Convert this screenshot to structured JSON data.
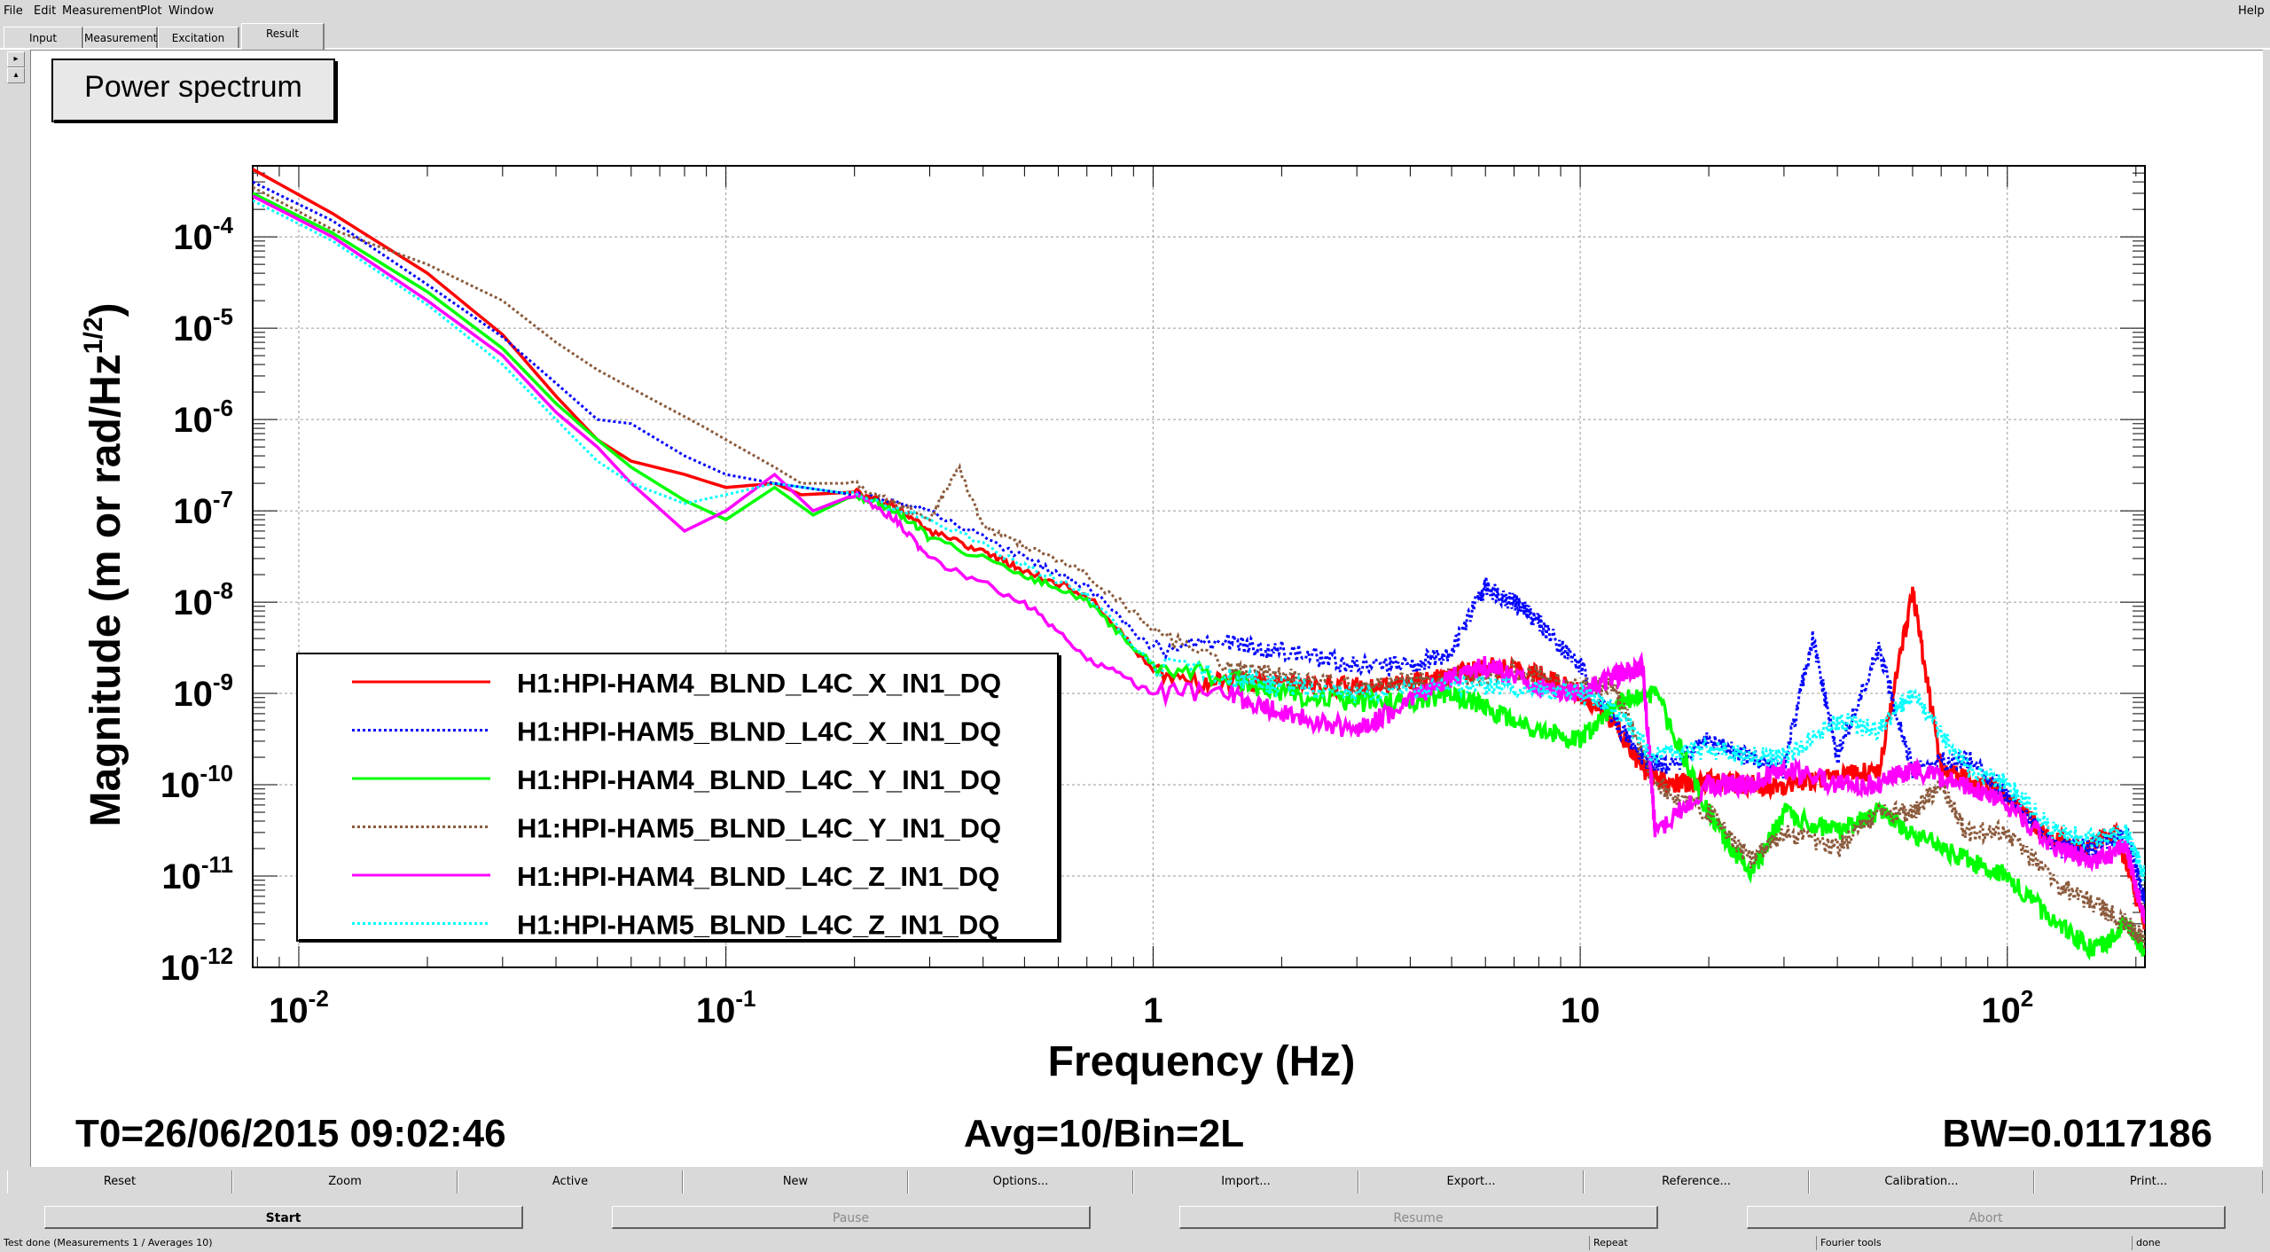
{
  "menu": {
    "items": [
      "File",
      "Edit",
      "Measurement",
      "Plot",
      "Window"
    ],
    "help": "Help"
  },
  "tabs": [
    "Input",
    "Measurement",
    "Excitation",
    "Result"
  ],
  "side_buttons": [
    "▸",
    "▴"
  ],
  "plot_title": "Power spectrum",
  "footer": {
    "t0": "T0=26/06/2015 09:02:46",
    "avg": "Avg=10/Bin=2L",
    "bw": "BW=0.0117186"
  },
  "toolbar_buttons": [
    "Reset",
    "Zoom",
    "Active",
    "New",
    "Options...",
    "Import...",
    "Export...",
    "Reference...",
    "Calibration...",
    "Print..."
  ],
  "control_buttons": [
    {
      "label": "Start",
      "enabled": true
    },
    {
      "label": "Pause",
      "enabled": false
    },
    {
      "label": "Resume",
      "enabled": false
    },
    {
      "label": "Abort",
      "enabled": false
    }
  ],
  "status": {
    "message": "Test done (Measurements 1 / Averages 10)",
    "repeat": "Repeat",
    "tools": "Fourier tools",
    "state": "done"
  },
  "colors": {
    "red": "#ff0000",
    "blue": "#0000ff",
    "green": "#00ff00",
    "brown": "#8b5a3c",
    "magenta": "#ff00ff",
    "cyan": "#00ffff"
  },
  "chart_data": {
    "type": "line",
    "title": "Power spectrum",
    "xlabel": "Frequency (Hz)",
    "ylabel_main": "Magnitude (m or rad/Hz",
    "ylabel_sup": "1/2",
    "ylabel_close": ")",
    "xscale": "log",
    "yscale": "log",
    "xlim": [
      0.0078,
      210
    ],
    "ylim": [
      1e-12,
      0.0006
    ],
    "grid": true,
    "legend_position": "bottom-left",
    "x_ticks": [
      {
        "base": "10",
        "exp": "-2",
        "value": 0.01
      },
      {
        "base": "10",
        "exp": "-1",
        "value": 0.1
      },
      {
        "base": "1",
        "exp": "",
        "value": 1
      },
      {
        "base": "10",
        "exp": "",
        "value": 10
      },
      {
        "base": "10",
        "exp": "2",
        "value": 100
      }
    ],
    "y_ticks": [
      {
        "base": "10",
        "exp": "-4",
        "value": 0.0001
      },
      {
        "base": "10",
        "exp": "-5",
        "value": 1e-05
      },
      {
        "base": "10",
        "exp": "-6",
        "value": 1e-06
      },
      {
        "base": "10",
        "exp": "-7",
        "value": 1e-07
      },
      {
        "base": "10",
        "exp": "-8",
        "value": 1e-08
      },
      {
        "base": "10",
        "exp": "-9",
        "value": 1e-09
      },
      {
        "base": "10",
        "exp": "-10",
        "value": 1e-10
      },
      {
        "base": "10",
        "exp": "-11",
        "value": 1e-11
      },
      {
        "base": "10",
        "exp": "-12",
        "value": 1e-12
      }
    ],
    "series": [
      {
        "name": "H1:HPI-HAM4_BLND_L4C_X_IN1_DQ",
        "color": "#ff0000",
        "dash": "solid",
        "x": [
          0.0078,
          0.012,
          0.02,
          0.03,
          0.04,
          0.05,
          0.06,
          0.08,
          0.1,
          0.13,
          0.15,
          0.2,
          0.25,
          0.3,
          0.4,
          0.5,
          0.7,
          1,
          1.3,
          2,
          3,
          4,
          5,
          6,
          8,
          10,
          12,
          14,
          16,
          20,
          25,
          30,
          40,
          50,
          60,
          70,
          80,
          100,
          120,
          150,
          180,
          210
        ],
        "y": [
          0.00055,
          0.00018,
          4e-05,
          8.5e-06,
          1.8e-06,
          6e-07,
          3.5e-07,
          2.5e-07,
          1.8e-07,
          2e-07,
          1.5e-07,
          1.6e-07,
          1.1e-07,
          6e-08,
          3.5e-08,
          2.2e-08,
          1.2e-08,
          1.8e-09,
          1.3e-09,
          1.3e-09,
          1.2e-09,
          1.3e-09,
          1.5e-09,
          2e-09,
          1.6e-09,
          1e-09,
          5e-10,
          1.5e-10,
          1e-10,
          1.1e-10,
          1e-10,
          1e-10,
          1.2e-10,
          1.5e-10,
          1.3e-08,
          1.5e-10,
          1.2e-10,
          8e-11,
          3e-11,
          2e-11,
          3e-11,
          3e-12
        ]
      },
      {
        "name": "H1:HPI-HAM5_BLND_L4C_X_IN1_DQ",
        "color": "#0000ff",
        "dash": "dot",
        "x": [
          0.0078,
          0.012,
          0.02,
          0.03,
          0.04,
          0.05,
          0.06,
          0.08,
          0.1,
          0.13,
          0.2,
          0.3,
          0.5,
          0.7,
          1,
          1.5,
          2,
          3,
          4,
          5,
          6,
          7,
          8,
          10,
          12,
          14,
          16,
          20,
          25,
          30,
          35,
          40,
          50,
          60,
          80,
          100,
          130,
          160,
          190,
          210
        ],
        "y": [
          0.0004,
          0.00015,
          3e-05,
          8e-06,
          2.5e-06,
          1e-06,
          9e-07,
          4e-07,
          2.5e-07,
          2e-07,
          1.5e-07,
          1e-07,
          3e-08,
          1.5e-08,
          3e-09,
          3.5e-09,
          3e-09,
          2e-09,
          2e-09,
          3e-09,
          1.5e-08,
          1e-08,
          6e-09,
          2e-09,
          5e-10,
          2e-10,
          1.5e-10,
          3e-10,
          2e-10,
          1.5e-10,
          4e-09,
          2e-10,
          3e-09,
          1.5e-10,
          2e-10,
          8e-11,
          2e-11,
          2e-11,
          3e-11,
          5e-12
        ]
      },
      {
        "name": "H1:HPI-HAM4_BLND_L4C_Y_IN1_DQ",
        "color": "#00ff00",
        "dash": "solid",
        "x": [
          0.0078,
          0.012,
          0.02,
          0.03,
          0.04,
          0.05,
          0.06,
          0.08,
          0.1,
          0.13,
          0.16,
          0.2,
          0.25,
          0.3,
          0.5,
          0.7,
          1,
          1.5,
          2,
          3,
          4,
          5,
          6,
          8,
          10,
          12,
          15,
          20,
          25,
          30,
          40,
          50,
          60,
          80,
          100,
          130,
          160,
          190,
          210
        ],
        "y": [
          0.0003,
          0.00011,
          2.5e-05,
          6e-06,
          1.5e-06,
          6e-07,
          3e-07,
          1.3e-07,
          8e-08,
          1.8e-07,
          9e-08,
          1.5e-07,
          1e-07,
          5e-08,
          2e-08,
          1e-08,
          2e-09,
          1.5e-09,
          1e-09,
          8e-10,
          8e-10,
          1e-09,
          7e-10,
          4e-10,
          3e-10,
          8e-10,
          1e-09,
          5e-11,
          1e-11,
          5e-11,
          3e-11,
          5e-11,
          3e-11,
          1.5e-11,
          1e-11,
          3e-12,
          1.5e-12,
          3e-12,
          1.5e-12
        ]
      },
      {
        "name": "H1:HPI-HAM5_BLND_L4C_Y_IN1_DQ",
        "color": "#8b5a3c",
        "dash": "dot",
        "x": [
          0.0078,
          0.012,
          0.02,
          0.03,
          0.04,
          0.05,
          0.07,
          0.09,
          0.1,
          0.13,
          0.15,
          0.2,
          0.25,
          0.3,
          0.35,
          0.4,
          0.5,
          0.7,
          1,
          1.5,
          2,
          3,
          4,
          5,
          7,
          10,
          12,
          15,
          20,
          25,
          30,
          40,
          50,
          60,
          70,
          80,
          100,
          130,
          160,
          190,
          210
        ],
        "y": [
          0.00035,
          0.00012,
          5e-05,
          2e-05,
          7e-06,
          3.5e-06,
          1.5e-06,
          8e-07,
          6e-07,
          3e-07,
          2e-07,
          2e-07,
          1.2e-07,
          8e-08,
          3e-07,
          7e-08,
          4e-08,
          2e-08,
          5e-09,
          2e-09,
          1.5e-09,
          1.2e-09,
          1.3e-09,
          1.5e-09,
          1.8e-09,
          1.2e-09,
          1.2e-09,
          1e-10,
          5e-11,
          1.5e-11,
          3e-11,
          2e-11,
          5e-11,
          5e-11,
          1e-10,
          3e-11,
          3e-11,
          8e-12,
          5e-12,
          3e-12,
          2e-12
        ]
      },
      {
        "name": "H1:HPI-HAM4_BLND_L4C_Z_IN1_DQ",
        "color": "#ff00ff",
        "dash": "solid",
        "x": [
          0.0078,
          0.012,
          0.02,
          0.03,
          0.04,
          0.05,
          0.06,
          0.08,
          0.1,
          0.13,
          0.16,
          0.2,
          0.25,
          0.3,
          0.5,
          0.7,
          1,
          1.5,
          2,
          3,
          4,
          5,
          6,
          8,
          10,
          12,
          14,
          15,
          20,
          25,
          30,
          40,
          50,
          60,
          80,
          100,
          130,
          160,
          190,
          210
        ],
        "y": [
          0.00028,
          0.0001,
          2e-05,
          5e-06,
          1.2e-06,
          5e-07,
          2e-07,
          6e-08,
          1e-07,
          2.5e-07,
          1e-07,
          1.5e-07,
          8e-08,
          3e-08,
          1e-08,
          2.5e-09,
          1e-09,
          1e-09,
          6e-10,
          4e-10,
          8e-10,
          1.5e-09,
          2e-09,
          1.2e-09,
          1e-09,
          1.5e-09,
          2e-09,
          3e-11,
          1e-10,
          1e-10,
          1.5e-10,
          1e-10,
          1e-10,
          1.5e-10,
          1e-10,
          6e-11,
          2e-11,
          1.5e-11,
          2e-11,
          3e-12
        ]
      },
      {
        "name": "H1:HPI-HAM5_BLND_L4C_Z_IN1_DQ",
        "color": "#00ffff",
        "dash": "dot",
        "x": [
          0.0078,
          0.012,
          0.02,
          0.03,
          0.04,
          0.05,
          0.06,
          0.08,
          0.1,
          0.13,
          0.2,
          0.3,
          0.5,
          0.7,
          1,
          1.5,
          2,
          3,
          5,
          7,
          10,
          12,
          15,
          20,
          25,
          30,
          40,
          50,
          60,
          80,
          100,
          130,
          160,
          190,
          210
        ],
        "y": [
          0.00025,
          9e-05,
          1.8e-05,
          4e-06,
          1e-06,
          3.5e-07,
          2e-07,
          1.2e-07,
          1.5e-07,
          2e-07,
          1.5e-07,
          8e-08,
          2.5e-08,
          1.2e-08,
          2e-09,
          1.5e-09,
          1.2e-09,
          1e-09,
          1.2e-09,
          1.2e-09,
          1e-09,
          7e-10,
          2e-10,
          2.5e-10,
          2e-10,
          2e-10,
          5e-10,
          4e-10,
          1e-09,
          1.5e-10,
          1e-10,
          3e-11,
          2.5e-11,
          3e-11,
          1e-11
        ]
      }
    ]
  }
}
